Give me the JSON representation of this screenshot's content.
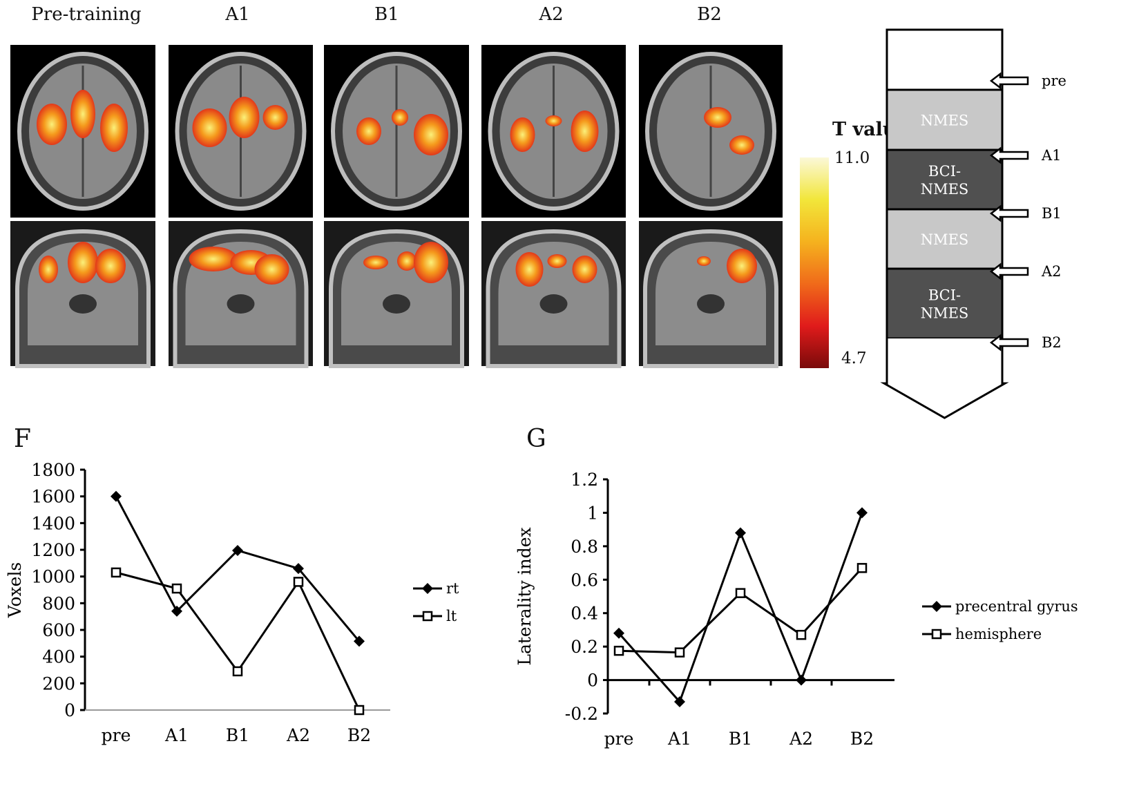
{
  "columns": [
    "Pre-training",
    "A1",
    "B1",
    "A2",
    "B2"
  ],
  "colorbar": {
    "title": "T value",
    "max": "11.0",
    "min": "4.7",
    "colors": [
      "#7a0a0a",
      "#e01b1b",
      "#f06a1a",
      "#f5b21e",
      "#f2e63a",
      "#fbf8d8"
    ]
  },
  "timeline": {
    "blocks": [
      {
        "label": "",
        "fill": "#ffffff",
        "text_color": "#111111"
      },
      {
        "label": "NMES",
        "fill": "#c8c8c8",
        "text_color": "#ffffff"
      },
      {
        "label": "BCI-\nNMES",
        "fill": "#505050",
        "text_color": "#ffffff"
      },
      {
        "label": "NMES",
        "fill": "#c8c8c8",
        "text_color": "#ffffff"
      },
      {
        "label": "BCI-\nNMES",
        "fill": "#505050",
        "text_color": "#ffffff"
      }
    ],
    "markers": [
      "pre",
      "A1",
      "B1",
      "A2",
      "B2"
    ]
  },
  "chart_data": [
    {
      "panel": "F",
      "type": "line",
      "categories": [
        "pre",
        "A1",
        "B1",
        "A2",
        "B2"
      ],
      "ylabel": "Voxels",
      "ylim": [
        0,
        1800
      ],
      "yticks": [
        "0",
        "200",
        "400",
        "600",
        "800",
        "1000",
        "1200",
        "1400",
        "1600",
        "1800"
      ],
      "legend": "right",
      "series": [
        {
          "name": "rt",
          "marker": "filled-diamond",
          "values": [
            1600,
            740,
            1195,
            1060,
            515
          ]
        },
        {
          "name": "lt",
          "marker": "open-square",
          "values": [
            1030,
            910,
            290,
            960,
            0
          ]
        }
      ]
    },
    {
      "panel": "G",
      "type": "line",
      "categories": [
        "pre",
        "A1",
        "B1",
        "A2",
        "B2"
      ],
      "ylabel": "Laterality index",
      "ylim": [
        -0.2,
        1.2
      ],
      "yticks": [
        "-0.2",
        "0",
        "0.2",
        "0.4",
        "0.6",
        "0.8",
        "1",
        "1.2"
      ],
      "legend": "right",
      "series": [
        {
          "name": "precentral gyrus",
          "marker": "filled-diamond",
          "values": [
            0.28,
            -0.13,
            0.88,
            0.0,
            1.0
          ]
        },
        {
          "name": "hemisphere",
          "marker": "open-square",
          "values": [
            0.175,
            0.165,
            0.52,
            0.27,
            0.67
          ]
        }
      ]
    }
  ]
}
